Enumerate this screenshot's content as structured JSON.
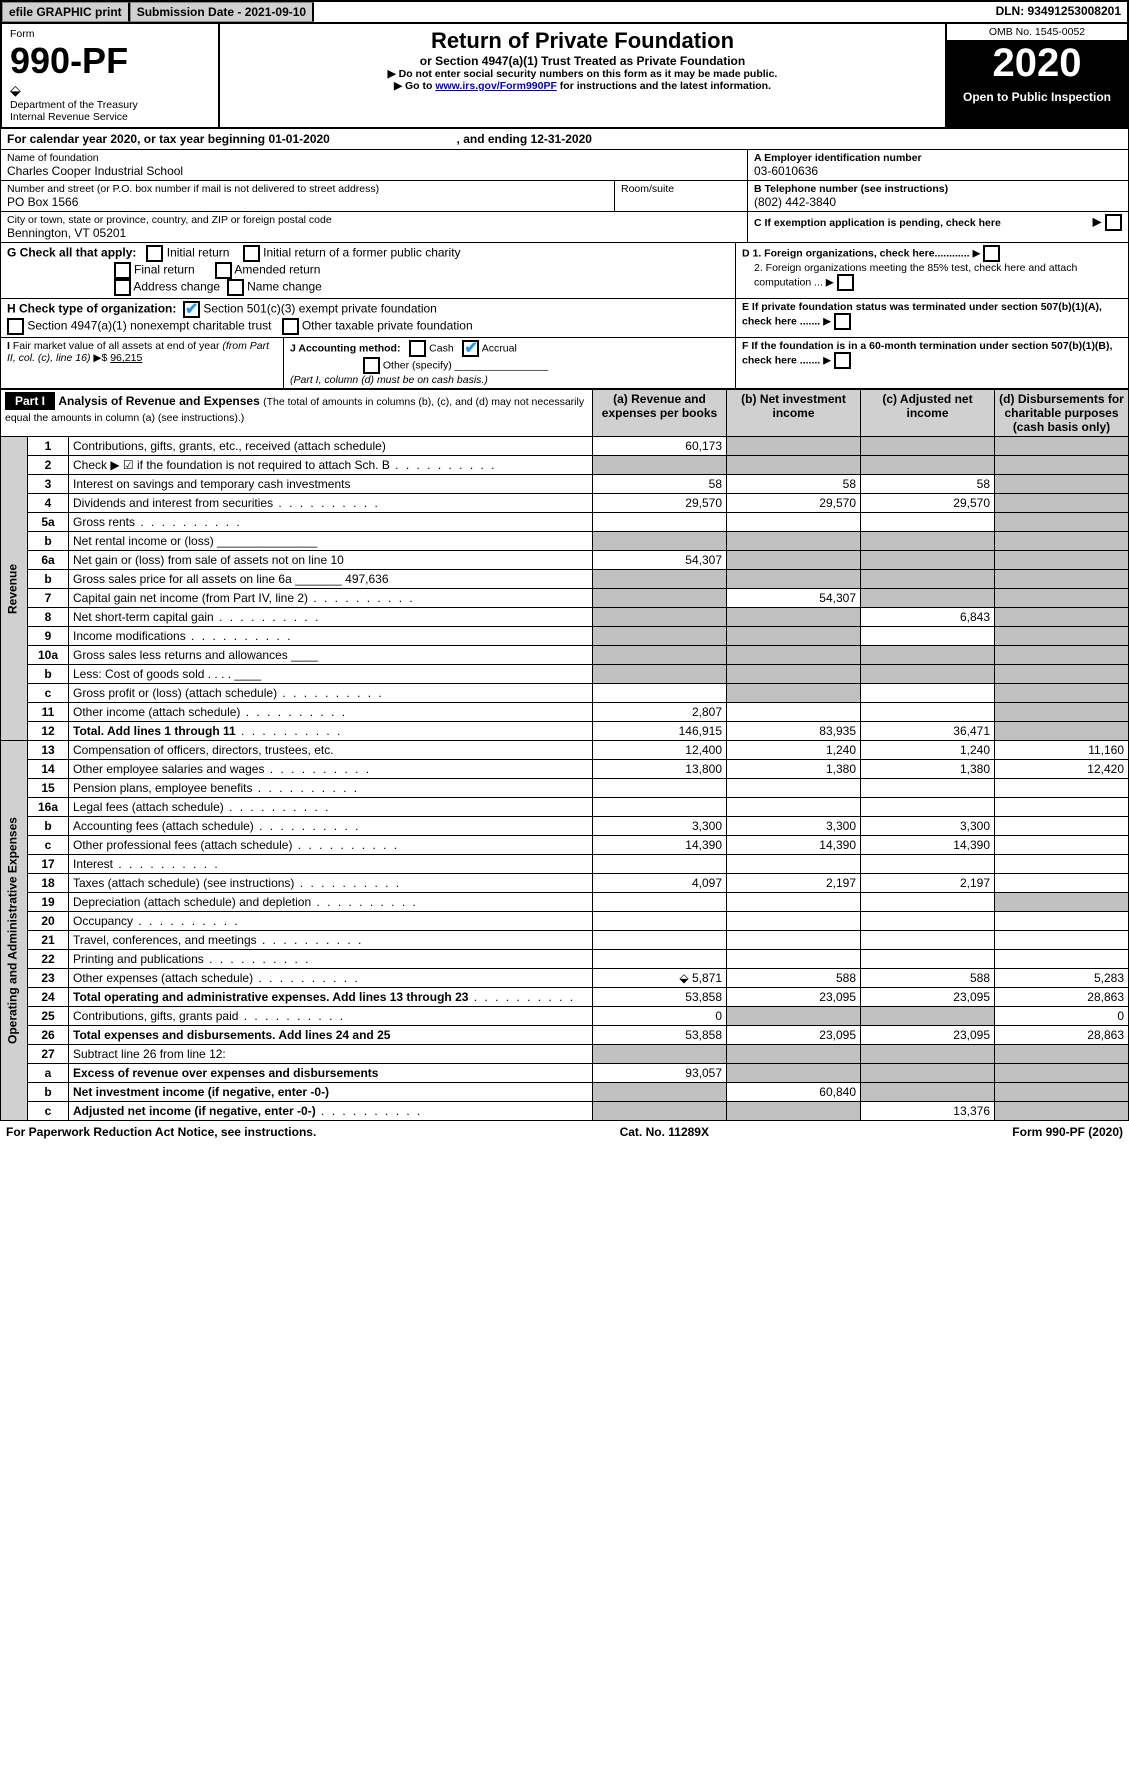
{
  "header_bar": {
    "efile": "efile GRAPHIC print",
    "submission": "Submission Date - 2021-09-10",
    "dln": "DLN: 93491253008201"
  },
  "top": {
    "form_label": "Form",
    "form_num": "990-PF",
    "dept": "Department of the Treasury\nInternal Revenue Service",
    "title": "Return of Private Foundation",
    "subtitle": "or Section 4947(a)(1) Trust Treated as Private Foundation",
    "note1": "▶ Do not enter social security numbers on this form as it may be made public.",
    "note2_pre": "▶ Go to ",
    "note2_link": "www.irs.gov/Form990PF",
    "note2_post": " for instructions and the latest information.",
    "omb": "OMB No. 1545-0052",
    "year": "2020",
    "open": "Open to Public Inspection"
  },
  "cal_line": {
    "prefix": "For calendar year 2020, or tax year beginning ",
    "begin": "01-01-2020",
    "mid": " , and ending ",
    "end": "12-31-2020"
  },
  "id_block": {
    "name_label": "Name of foundation",
    "name": "Charles Cooper Industrial School",
    "addr_label": "Number and street (or P.O. box number if mail is not delivered to street address)",
    "addr": "PO Box 1566",
    "room_label": "Room/suite",
    "city_label": "City or town, state or province, country, and ZIP or foreign postal code",
    "city": "Bennington, VT  05201",
    "a_label": "A Employer identification number",
    "a_val": "03-6010636",
    "b_label": "B Telephone number (see instructions)",
    "b_val": "(802) 442-3840",
    "c_label": "C If exemption application is pending, check here"
  },
  "g_block": {
    "label": "G Check all that apply:",
    "opts": [
      "Initial return",
      "Final return",
      "Address change",
      "Initial return of a former public charity",
      "Amended return",
      "Name change"
    ]
  },
  "h_block": {
    "label": "H Check type of organization:",
    "opt1": "Section 501(c)(3) exempt private foundation",
    "opt2": "Section 4947(a)(1) nonexempt charitable trust",
    "opt3": "Other taxable private foundation"
  },
  "d_block": {
    "d1": "D 1. Foreign organizations, check here............",
    "d2": "2. Foreign organizations meeting the 85% test, check here and attach computation ...",
    "e": "E  If private foundation status was terminated under section 507(b)(1)(A), check here .......",
    "f": "F  If the foundation is in a 60-month termination under section 507(b)(1)(B), check here ......."
  },
  "i_block": {
    "label": "I Fair market value of all assets at end of year (from Part II, col. (c), line 16) ▶$",
    "val": "96,215"
  },
  "j_block": {
    "label": "J Accounting method:",
    "cash": "Cash",
    "accrual": "Accrual",
    "other": "Other (specify)",
    "note": "(Part I, column (d) must be on cash basis.)"
  },
  "part1": {
    "tag": "Part I",
    "title": "Analysis of Revenue and Expenses",
    "title_note": " (The total of amounts in columns (b), (c), and (d) may not necessarily equal the amounts in column (a) (see instructions).)",
    "col_a": "(a)  Revenue and expenses per books",
    "col_b": "(b)  Net investment income",
    "col_c": "(c)  Adjusted net income",
    "col_d": "(d)  Disbursements for charitable purposes (cash basis only)"
  },
  "side_labels": {
    "revenue": "Revenue",
    "expenses": "Operating and Administrative Expenses"
  },
  "rows": [
    {
      "n": "1",
      "d": "Contributions, gifts, grants, etc., received (attach schedule)",
      "a": "60,173",
      "b": "",
      "c": "",
      "dd": "",
      "grey": [
        "b",
        "c",
        "dd"
      ]
    },
    {
      "n": "2",
      "d": "Check ▶ ☑ if the foundation is not required to attach Sch. B",
      "a": "",
      "b": "",
      "c": "",
      "dd": "",
      "grey": [
        "a",
        "b",
        "c",
        "dd"
      ],
      "dots": true
    },
    {
      "n": "3",
      "d": "Interest on savings and temporary cash investments",
      "a": "58",
      "b": "58",
      "c": "58",
      "dd": "",
      "grey": [
        "dd"
      ]
    },
    {
      "n": "4",
      "d": "Dividends and interest from securities",
      "a": "29,570",
      "b": "29,570",
      "c": "29,570",
      "dd": "",
      "grey": [
        "dd"
      ],
      "dots": true
    },
    {
      "n": "5a",
      "d": "Gross rents",
      "a": "",
      "b": "",
      "c": "",
      "dd": "",
      "grey": [
        "dd"
      ],
      "dots": true
    },
    {
      "n": "b",
      "d": "Net rental income or (loss)  _______________",
      "a": "",
      "b": "",
      "c": "",
      "dd": "",
      "grey": [
        "a",
        "b",
        "c",
        "dd"
      ]
    },
    {
      "n": "6a",
      "d": "Net gain or (loss) from sale of assets not on line 10",
      "a": "54,307",
      "b": "",
      "c": "",
      "dd": "",
      "grey": [
        "b",
        "c",
        "dd"
      ]
    },
    {
      "n": "b",
      "d": "Gross sales price for all assets on line 6a _______ 497,636",
      "a": "",
      "b": "",
      "c": "",
      "dd": "",
      "grey": [
        "a",
        "b",
        "c",
        "dd"
      ]
    },
    {
      "n": "7",
      "d": "Capital gain net income (from Part IV, line 2)",
      "a": "",
      "b": "54,307",
      "c": "",
      "dd": "",
      "grey": [
        "a",
        "c",
        "dd"
      ],
      "dots": true
    },
    {
      "n": "8",
      "d": "Net short-term capital gain",
      "a": "",
      "b": "",
      "c": "6,843",
      "dd": "",
      "grey": [
        "a",
        "b",
        "dd"
      ],
      "dots": true
    },
    {
      "n": "9",
      "d": "Income modifications",
      "a": "",
      "b": "",
      "c": "",
      "dd": "",
      "grey": [
        "a",
        "b",
        "dd"
      ],
      "dots": true
    },
    {
      "n": "10a",
      "d": "Gross sales less returns and allowances  ____",
      "a": "",
      "b": "",
      "c": "",
      "dd": "",
      "grey": [
        "a",
        "b",
        "c",
        "dd"
      ]
    },
    {
      "n": "b",
      "d": "Less: Cost of goods sold        .  .  .  .  ____",
      "a": "",
      "b": "",
      "c": "",
      "dd": "",
      "grey": [
        "a",
        "b",
        "c",
        "dd"
      ]
    },
    {
      "n": "c",
      "d": "Gross profit or (loss) (attach schedule)",
      "a": "",
      "b": "",
      "c": "",
      "dd": "",
      "grey": [
        "b",
        "dd"
      ],
      "dots": true
    },
    {
      "n": "11",
      "d": "Other income (attach schedule)",
      "a": "2,807",
      "b": "",
      "c": "",
      "dd": "",
      "grey": [
        "dd"
      ],
      "dots": true
    },
    {
      "n": "12",
      "d": "Total. Add lines 1 through 11",
      "a": "146,915",
      "b": "83,935",
      "c": "36,471",
      "dd": "",
      "grey": [
        "dd"
      ],
      "bold": true,
      "dots": true
    },
    {
      "n": "13",
      "d": "Compensation of officers, directors, trustees, etc.",
      "a": "12,400",
      "b": "1,240",
      "c": "1,240",
      "dd": "11,160"
    },
    {
      "n": "14",
      "d": "Other employee salaries and wages",
      "a": "13,800",
      "b": "1,380",
      "c": "1,380",
      "dd": "12,420",
      "dots": true
    },
    {
      "n": "15",
      "d": "Pension plans, employee benefits",
      "a": "",
      "b": "",
      "c": "",
      "dd": "",
      "dots": true
    },
    {
      "n": "16a",
      "d": "Legal fees (attach schedule)",
      "a": "",
      "b": "",
      "c": "",
      "dd": "",
      "dots": true
    },
    {
      "n": "b",
      "d": "Accounting fees (attach schedule)",
      "a": "3,300",
      "b": "3,300",
      "c": "3,300",
      "dd": "",
      "dots": true
    },
    {
      "n": "c",
      "d": "Other professional fees (attach schedule)",
      "a": "14,390",
      "b": "14,390",
      "c": "14,390",
      "dd": "",
      "dots": true
    },
    {
      "n": "17",
      "d": "Interest",
      "a": "",
      "b": "",
      "c": "",
      "dd": "",
      "dots": true
    },
    {
      "n": "18",
      "d": "Taxes (attach schedule) (see instructions)",
      "a": "4,097",
      "b": "2,197",
      "c": "2,197",
      "dd": "",
      "dots": true
    },
    {
      "n": "19",
      "d": "Depreciation (attach schedule) and depletion",
      "a": "",
      "b": "",
      "c": "",
      "dd": "",
      "grey": [
        "dd"
      ],
      "dots": true
    },
    {
      "n": "20",
      "d": "Occupancy",
      "a": "",
      "b": "",
      "c": "",
      "dd": "",
      "dots": true
    },
    {
      "n": "21",
      "d": "Travel, conferences, and meetings",
      "a": "",
      "b": "",
      "c": "",
      "dd": "",
      "dots": true
    },
    {
      "n": "22",
      "d": "Printing and publications",
      "a": "",
      "b": "",
      "c": "",
      "dd": "",
      "dots": true
    },
    {
      "n": "23",
      "d": "Other expenses (attach schedule)",
      "a": "5,871",
      "b": "588",
      "c": "588",
      "dd": "5,283",
      "icon": true,
      "dots": true
    },
    {
      "n": "24",
      "d": "Total operating and administrative expenses. Add lines 13 through 23",
      "a": "53,858",
      "b": "23,095",
      "c": "23,095",
      "dd": "28,863",
      "bold": true,
      "dots": true
    },
    {
      "n": "25",
      "d": "Contributions, gifts, grants paid",
      "a": "0",
      "b": "",
      "c": "",
      "dd": "0",
      "grey": [
        "b",
        "c"
      ],
      "dots": true
    },
    {
      "n": "26",
      "d": "Total expenses and disbursements. Add lines 24 and 25",
      "a": "53,858",
      "b": "23,095",
      "c": "23,095",
      "dd": "28,863",
      "bold": true
    },
    {
      "n": "27",
      "d": "Subtract line 26 from line 12:",
      "a": "",
      "b": "",
      "c": "",
      "dd": "",
      "grey": [
        "a",
        "b",
        "c",
        "dd"
      ]
    },
    {
      "n": "a",
      "d": "Excess of revenue over expenses and disbursements",
      "a": "93,057",
      "b": "",
      "c": "",
      "dd": "",
      "grey": [
        "b",
        "c",
        "dd"
      ],
      "bold": true
    },
    {
      "n": "b",
      "d": "Net investment income (if negative, enter -0-)",
      "a": "",
      "b": "60,840",
      "c": "",
      "dd": "",
      "grey": [
        "a",
        "c",
        "dd"
      ],
      "bold": true
    },
    {
      "n": "c",
      "d": "Adjusted net income (if negative, enter -0-)",
      "a": "",
      "b": "",
      "c": "13,376",
      "dd": "",
      "grey": [
        "a",
        "b",
        "dd"
      ],
      "bold": true,
      "dots": true
    }
  ],
  "footer": {
    "left": "For Paperwork Reduction Act Notice, see instructions.",
    "mid": "Cat. No. 11289X",
    "right": "Form 990-PF (2020)"
  }
}
